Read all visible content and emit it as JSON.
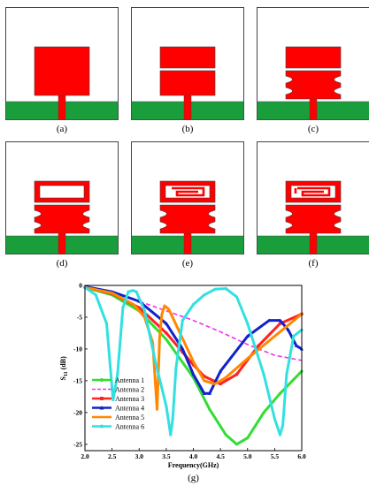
{
  "panels": [
    {
      "label": "(a)",
      "variant": "patch"
    },
    {
      "label": "(b)",
      "variant": "slot"
    },
    {
      "label": "(c)",
      "variant": "notched"
    },
    {
      "label": "(d)",
      "variant": "ring-notched"
    },
    {
      "label": "(e)",
      "variant": "ring-spiral"
    },
    {
      "label": "(f)",
      "variant": "ring-spiral-2"
    }
  ],
  "chart_caption": "(g)",
  "colors": {
    "substrate": "#ffffff",
    "patch": "#ff0000",
    "ground": "#1a9e3c",
    "outline": "#444444"
  },
  "chart_data": {
    "type": "line",
    "xlabel": "Frequency(GHz)",
    "ylabel_main": "S",
    "ylabel_sub": "11",
    "ylabel_unit": " (dB)",
    "xlim": [
      2.0,
      6.0
    ],
    "ylim": [
      -26,
      0
    ],
    "xticks": [
      "2.0",
      "2.5",
      "3.0",
      "3.5",
      "4.0",
      "4.5",
      "5.0",
      "5.5",
      "6.0"
    ],
    "yticks": [
      "0",
      "-5",
      "-10",
      "-15",
      "-20",
      "-25"
    ],
    "series": [
      {
        "name": "Antenna 1",
        "color": "#33dd33",
        "marker": "circle",
        "x": [
          2.0,
          2.5,
          3.0,
          3.5,
          4.0,
          4.3,
          4.6,
          4.8,
          5.0,
          5.3,
          5.6,
          6.0
        ],
        "y": [
          -0.3,
          -1.5,
          -4.0,
          -8.5,
          -14.5,
          -19.5,
          -23.5,
          -25.0,
          -24.0,
          -20.0,
          -17.0,
          -13.5
        ]
      },
      {
        "name": "Antenna 2",
        "color": "#ee33ee",
        "marker": "none",
        "x": [
          2.0,
          2.5,
          3.0,
          3.5,
          4.0,
          4.5,
          5.0,
          5.5,
          6.0
        ],
        "y": [
          -0.2,
          -1.0,
          -2.5,
          -4.0,
          -5.5,
          -7.3,
          -9.3,
          -11.0,
          -11.8
        ]
      },
      {
        "name": "Antenna 3",
        "color": "#ff2222",
        "marker": "square",
        "x": [
          2.0,
          2.5,
          3.0,
          3.5,
          3.8,
          4.0,
          4.2,
          4.5,
          4.8,
          5.2,
          5.6,
          6.0
        ],
        "y": [
          -0.3,
          -1.3,
          -3.5,
          -7.5,
          -10.5,
          -12.5,
          -14.3,
          -15.5,
          -14.0,
          -9.5,
          -6.0,
          -4.5
        ]
      },
      {
        "name": "Antenna 4",
        "color": "#1122cc",
        "marker": "triangle",
        "x": [
          2.0,
          2.5,
          3.0,
          3.5,
          3.8,
          4.0,
          4.2,
          4.3,
          4.5,
          5.0,
          5.4,
          5.6,
          5.75,
          5.9,
          6.0
        ],
        "y": [
          -0.2,
          -1.0,
          -2.5,
          -6.0,
          -10.0,
          -14.0,
          -17.0,
          -17.0,
          -13.5,
          -8.0,
          -5.5,
          -5.5,
          -7.0,
          -9.5,
          -10.0
        ]
      },
      {
        "name": "Antenna 5",
        "color": "#ff8800",
        "marker": "none",
        "x": [
          2.0,
          2.5,
          2.9,
          3.1,
          3.25,
          3.33,
          3.38,
          3.42,
          3.47,
          3.55,
          3.7,
          4.0,
          4.2,
          4.4,
          4.6,
          5.0,
          5.5,
          6.0
        ],
        "y": [
          -0.3,
          -1.2,
          -3.0,
          -5.0,
          -9.0,
          -19.5,
          -8.0,
          -4.5,
          -3.2,
          -3.8,
          -6.5,
          -12.0,
          -15.0,
          -15.5,
          -14.5,
          -11.5,
          -8.0,
          -4.5
        ]
      },
      {
        "name": "Antenna 6",
        "color": "#33e0e0",
        "marker": "circle",
        "x": [
          2.0,
          2.2,
          2.4,
          2.52,
          2.6,
          2.7,
          2.8,
          2.88,
          2.95,
          3.1,
          3.3,
          3.5,
          3.58,
          3.62,
          3.68,
          3.8,
          4.0,
          4.2,
          4.4,
          4.6,
          4.8,
          5.0,
          5.3,
          5.5,
          5.6,
          5.65,
          5.72,
          5.85,
          6.0
        ],
        "y": [
          -0.3,
          -1.5,
          -6.0,
          -18.0,
          -14.0,
          -3.5,
          -1.0,
          -0.8,
          -1.0,
          -4.0,
          -12.0,
          -19.0,
          -23.5,
          -21.0,
          -13.0,
          -5.5,
          -3.0,
          -1.5,
          -0.6,
          -0.5,
          -1.8,
          -6.0,
          -14.0,
          -21.0,
          -23.5,
          -22.0,
          -14.0,
          -8.0,
          -7.0
        ]
      }
    ]
  }
}
